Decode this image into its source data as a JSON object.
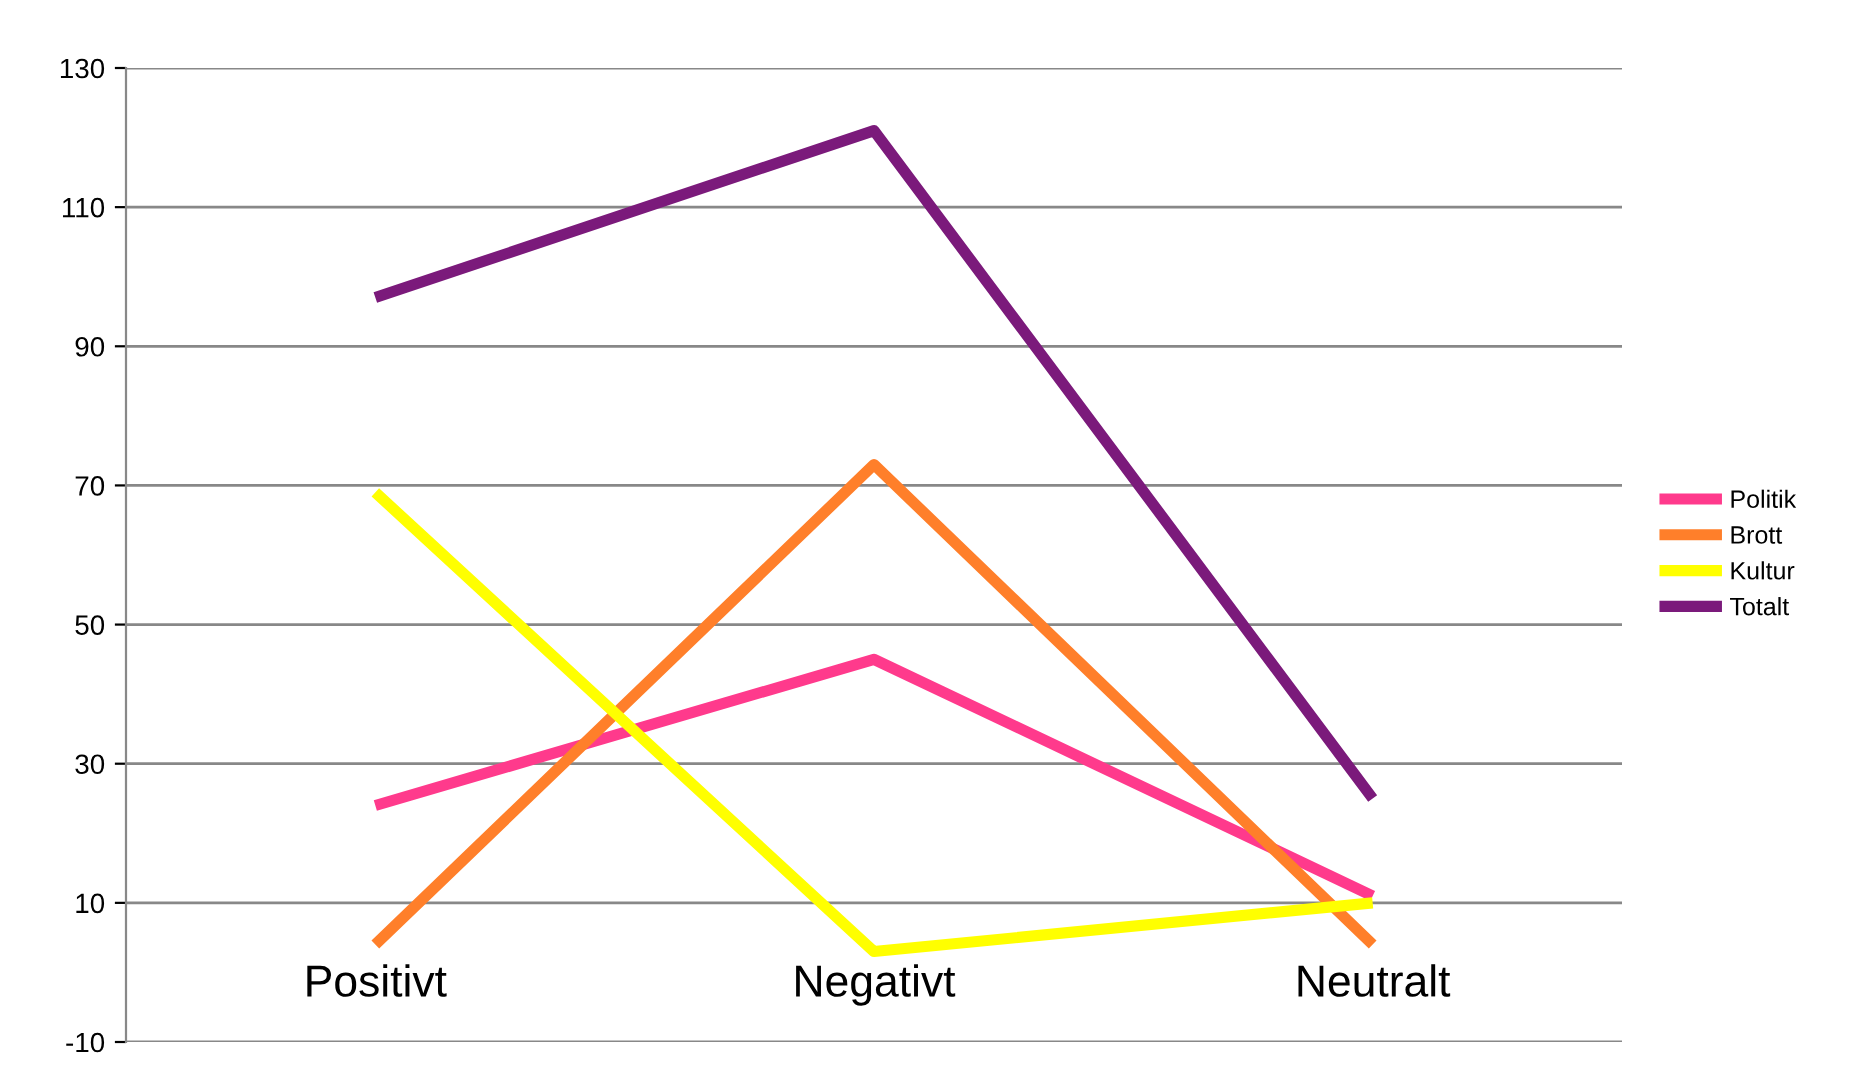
{
  "chart_data": {
    "type": "line",
    "categories": [
      "Positivt",
      "Negativt",
      "Neutralt"
    ],
    "series": [
      {
        "name": "Politik",
        "color": "#ff3a8c",
        "values": [
          24,
          45,
          11
        ]
      },
      {
        "name": "Brott",
        "color": "#ff7f2a",
        "values": [
          4,
          73,
          4
        ]
      },
      {
        "name": "Kultur",
        "color": "#ffff00",
        "values": [
          69,
          3,
          10
        ]
      },
      {
        "name": "Totalt",
        "color": "#7b1a7b",
        "values": [
          97,
          121,
          25
        ]
      }
    ],
    "ylim": [
      -10,
      130
    ],
    "yticks": [
      -10,
      10,
      30,
      50,
      70,
      90,
      110,
      130
    ],
    "grid": "y",
    "legend": "right",
    "marker": "none",
    "line_style": "solid"
  }
}
